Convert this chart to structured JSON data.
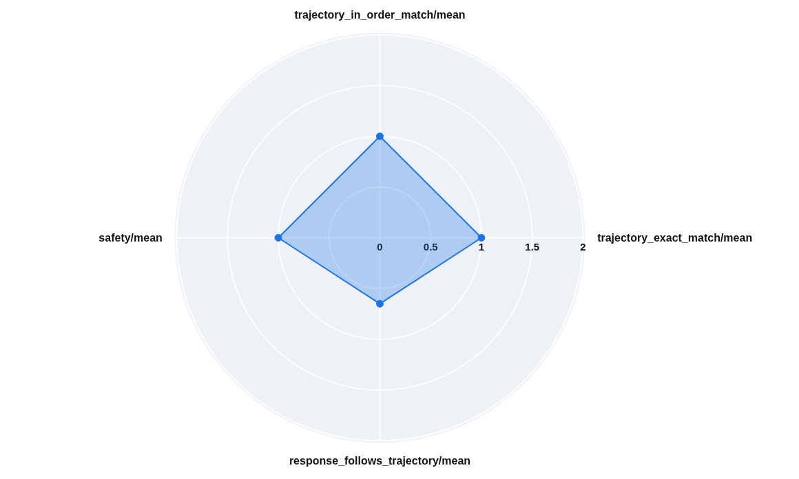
{
  "chart_data": {
    "type": "radar",
    "categories": [
      "trajectory_in_order_match/mean",
      "trajectory_exact_match/mean",
      "response_follows_trajectory/mean",
      "safety/mean"
    ],
    "series": [
      {
        "color": "#1a73e8",
        "values": [
          1,
          1,
          0.65,
          1
        ]
      }
    ],
    "ylim": [
      0,
      2
    ],
    "yticks": [
      0,
      0.5,
      1,
      1.5,
      2
    ],
    "grid": true,
    "marker": "circle"
  }
}
